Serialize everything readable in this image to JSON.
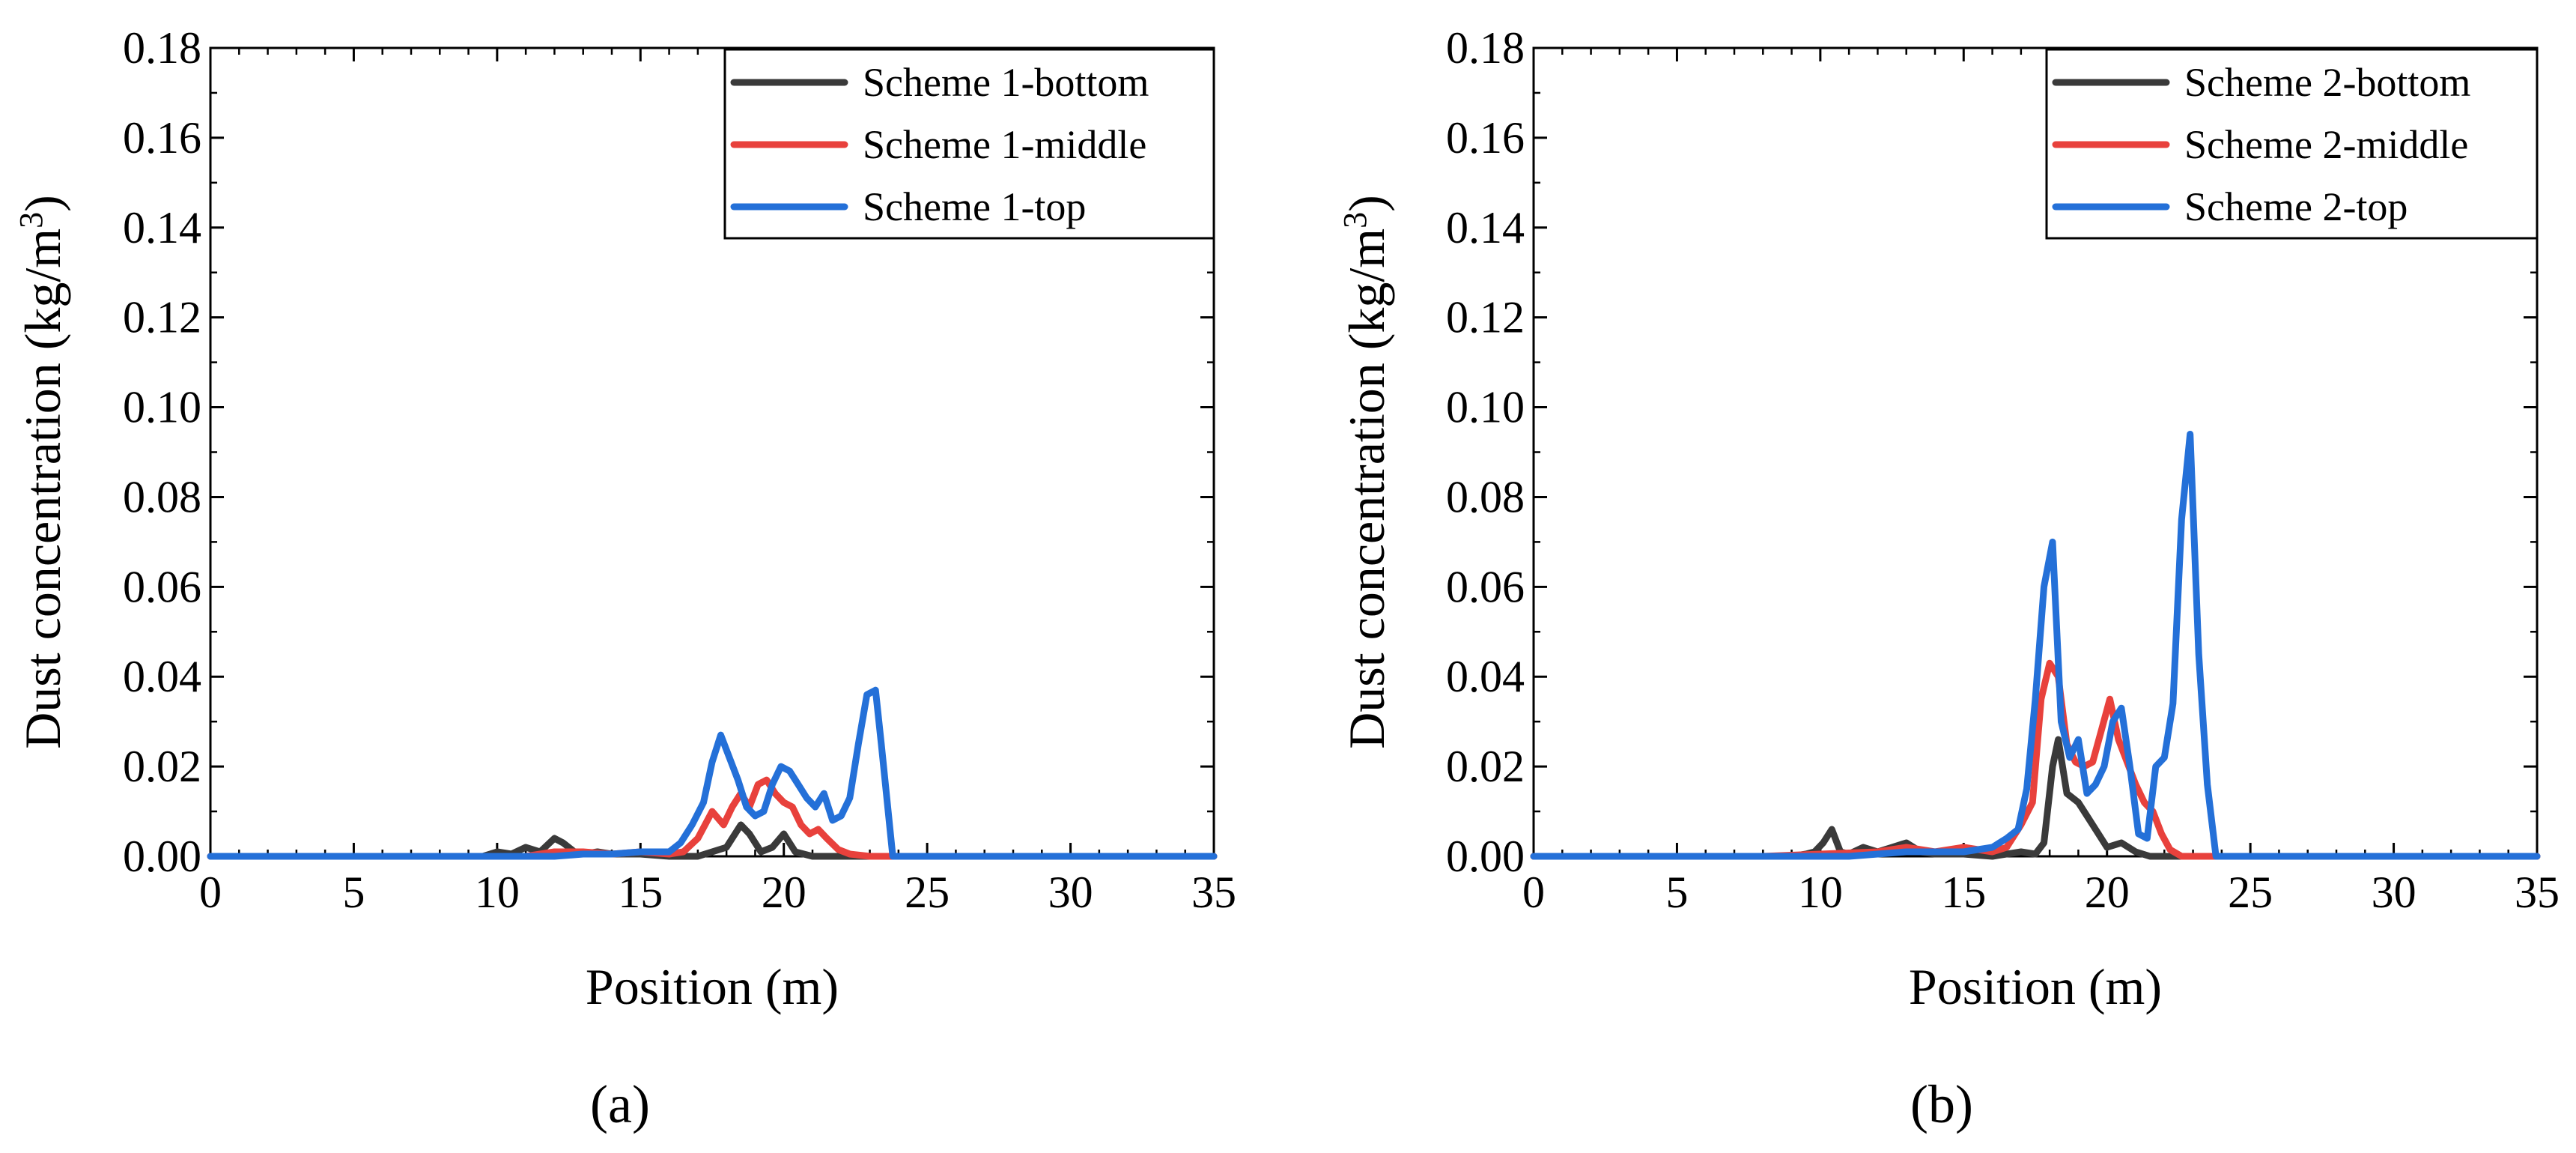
{
  "figure": {
    "charts": [
      {
        "panel_label": "(a)"
      },
      {
        "panel_label": "(b)"
      }
    ]
  },
  "chart_data": [
    {
      "type": "line",
      "panel_label": "(a)",
      "title": "",
      "xlabel": "Position (m)",
      "ylabel": "Dust concentration (kg/m3)",
      "ylabel_main": "Dust concentration (kg/m",
      "ylabel_sup": "3",
      "ylabel_close": ")",
      "xlim": [
        0,
        35
      ],
      "ylim": [
        0,
        0.18
      ],
      "xticks": [
        0,
        5,
        10,
        15,
        20,
        25,
        30,
        35
      ],
      "xtick_labels": [
        "0",
        "5",
        "10",
        "15",
        "20",
        "25",
        "30",
        "35"
      ],
      "yticks": [
        0,
        0.02,
        0.04,
        0.06,
        0.08,
        0.1,
        0.12,
        0.14,
        0.16,
        0.18
      ],
      "ytick_labels": [
        "0.00",
        "0.02",
        "0.04",
        "0.06",
        "0.08",
        "0.10",
        "0.12",
        "0.14",
        "0.16",
        "0.18"
      ],
      "grid": false,
      "legend_position": "top-right",
      "series": [
        {
          "name": "Scheme 1-bottom",
          "color": "#3a3a3a",
          "x": [
            0,
            9.5,
            10,
            10.5,
            11,
            11.5,
            12,
            12.3,
            12.7,
            13,
            13.5,
            14,
            15,
            16,
            17,
            17.5,
            18,
            18.5,
            18.8,
            19.2,
            19.6,
            20,
            20.4,
            21,
            35
          ],
          "y": [
            0,
            0,
            0.001,
            0.0005,
            0.002,
            0.001,
            0.004,
            0.003,
            0.001,
            0.0005,
            0.001,
            0.0005,
            0.0005,
            0,
            0,
            0.001,
            0.002,
            0.007,
            0.005,
            0.001,
            0.002,
            0.005,
            0.001,
            0,
            0
          ]
        },
        {
          "name": "Scheme 1-middle",
          "color": "#e8413c",
          "x": [
            0,
            11,
            12,
            13,
            14,
            15,
            16,
            16.5,
            17,
            17.5,
            17.9,
            18.2,
            18.5,
            18.8,
            19.1,
            19.4,
            19.7,
            20,
            20.3,
            20.6,
            20.9,
            21.2,
            21.5,
            21.9,
            22.3,
            23,
            35
          ],
          "y": [
            0,
            0,
            0.001,
            0.001,
            0.0005,
            0.001,
            0.0005,
            0.001,
            0.004,
            0.01,
            0.007,
            0.011,
            0.014,
            0.011,
            0.016,
            0.017,
            0.014,
            0.012,
            0.011,
            0.007,
            0.005,
            0.006,
            0.004,
            0.0015,
            0.0005,
            0,
            0
          ]
        },
        {
          "name": "Scheme 1-top",
          "color": "#2470d8",
          "x": [
            0,
            12,
            13,
            14,
            15,
            16,
            16.4,
            16.8,
            17.2,
            17.5,
            17.8,
            18.1,
            18.4,
            18.7,
            19,
            19.3,
            19.6,
            19.9,
            20.2,
            20.5,
            20.8,
            21.1,
            21.4,
            21.7,
            22,
            22.3,
            22.6,
            22.9,
            23.2,
            23.4,
            23.8,
            24.3,
            35
          ],
          "y": [
            0,
            0,
            0.0005,
            0.0005,
            0.001,
            0.001,
            0.003,
            0.007,
            0.012,
            0.021,
            0.027,
            0.022,
            0.017,
            0.011,
            0.009,
            0.01,
            0.016,
            0.02,
            0.019,
            0.016,
            0.013,
            0.011,
            0.014,
            0.008,
            0.009,
            0.013,
            0.025,
            0.036,
            0.037,
            0.025,
            0,
            0,
            0
          ]
        }
      ]
    },
    {
      "type": "line",
      "panel_label": "(b)",
      "title": "",
      "xlabel": "Position (m)",
      "ylabel": "Dust concentration (kg/m3)",
      "ylabel_main": "Dust concentration (kg/m",
      "ylabel_sup": "3",
      "ylabel_close": ")",
      "xlim": [
        0,
        35
      ],
      "ylim": [
        0,
        0.18
      ],
      "xticks": [
        0,
        5,
        10,
        15,
        20,
        25,
        30,
        35
      ],
      "xtick_labels": [
        "0",
        "5",
        "10",
        "15",
        "20",
        "25",
        "30",
        "35"
      ],
      "yticks": [
        0,
        0.02,
        0.04,
        0.06,
        0.08,
        0.1,
        0.12,
        0.14,
        0.16,
        0.18
      ],
      "ytick_labels": [
        "0.00",
        "0.02",
        "0.04",
        "0.06",
        "0.08",
        "0.10",
        "0.12",
        "0.14",
        "0.16",
        "0.18"
      ],
      "grid": false,
      "legend_position": "top-right",
      "series": [
        {
          "name": "Scheme 2-bottom",
          "color": "#3a3a3a",
          "x": [
            0,
            9,
            9.5,
            9.8,
            10.1,
            10.4,
            10.7,
            11,
            11.5,
            12,
            12.5,
            13,
            13.5,
            14,
            15,
            16,
            17,
            17.5,
            17.8,
            18.1,
            18.3,
            18.6,
            19,
            19.5,
            20,
            20.5,
            21,
            21.5,
            35
          ],
          "y": [
            0,
            0,
            0.0005,
            0.001,
            0.003,
            0.006,
            0.001,
            0.0005,
            0.002,
            0.001,
            0.002,
            0.003,
            0.001,
            0.0005,
            0.0005,
            0,
            0.001,
            0.0005,
            0.003,
            0.02,
            0.026,
            0.014,
            0.012,
            0.007,
            0.002,
            0.003,
            0.001,
            0,
            0
          ]
        },
        {
          "name": "Scheme 2-middle",
          "color": "#e8413c",
          "x": [
            0,
            8,
            10,
            12,
            13,
            14,
            15,
            16,
            16.5,
            17,
            17.4,
            17.7,
            18,
            18.3,
            18.6,
            18.9,
            19.2,
            19.5,
            19.8,
            20.1,
            20.4,
            20.7,
            21,
            21.3,
            21.6,
            21.9,
            22.2,
            22.6,
            23,
            35
          ],
          "y": [
            0,
            0,
            0.0005,
            0.001,
            0.002,
            0.001,
            0.002,
            0.001,
            0.002,
            0.007,
            0.012,
            0.035,
            0.043,
            0.04,
            0.025,
            0.021,
            0.02,
            0.021,
            0.028,
            0.035,
            0.026,
            0.021,
            0.016,
            0.012,
            0.01,
            0.005,
            0.0015,
            0,
            0,
            0
          ]
        },
        {
          "name": "Scheme 2-top",
          "color": "#2470d8",
          "x": [
            0,
            11,
            12,
            13,
            14,
            15,
            16,
            16.5,
            16.9,
            17.2,
            17.5,
            17.8,
            18.1,
            18.4,
            18.7,
            19,
            19.3,
            19.6,
            19.9,
            20.2,
            20.5,
            20.8,
            21.1,
            21.4,
            21.7,
            22,
            22.3,
            22.6,
            22.9,
            23.2,
            23.5,
            23.8,
            24.3,
            35
          ],
          "y": [
            0,
            0,
            0.0005,
            0.001,
            0.001,
            0.001,
            0.002,
            0.004,
            0.006,
            0.015,
            0.035,
            0.06,
            0.07,
            0.03,
            0.022,
            0.026,
            0.014,
            0.016,
            0.02,
            0.03,
            0.033,
            0.02,
            0.005,
            0.004,
            0.02,
            0.022,
            0.034,
            0.075,
            0.094,
            0.045,
            0.016,
            0,
            0,
            0
          ]
        }
      ]
    }
  ]
}
